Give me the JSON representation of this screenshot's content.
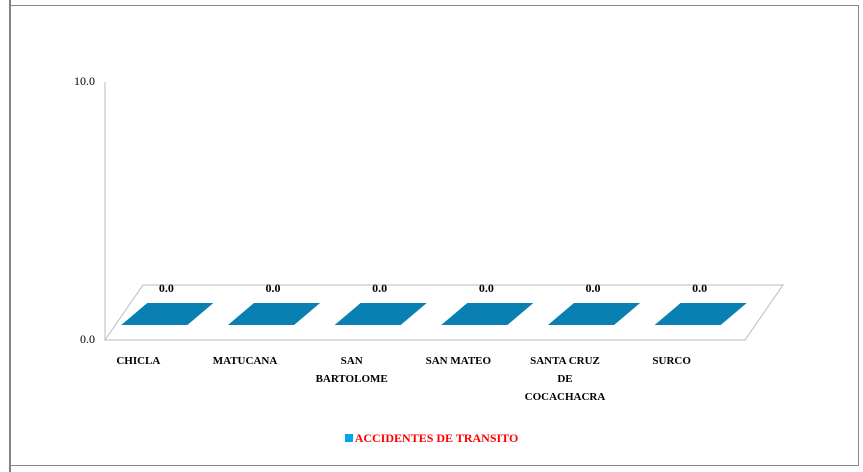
{
  "chart_data": {
    "type": "bar",
    "categories": [
      "CHICLA",
      "MATUCANA",
      "SAN BARTOLOME",
      "SAN MATEO",
      "SANTA CRUZ DE COCACHACRA",
      "SURCO"
    ],
    "series": [
      {
        "name": "ACCIDENTES DE TRANSITO",
        "color": "#0a80b2",
        "legend_color": "#00a8e8",
        "values": [
          0,
          0,
          0,
          0,
          0,
          0
        ],
        "value_labels": [
          "0.0",
          "0.0",
          "0.0",
          "0.0",
          "0.0",
          "0.0"
        ]
      }
    ],
    "ylim": [
      0,
      10
    ],
    "yticks": [
      {
        "value": 0,
        "label": "0.0"
      },
      {
        "value": 10,
        "label": "10.0"
      }
    ],
    "grid": false
  }
}
